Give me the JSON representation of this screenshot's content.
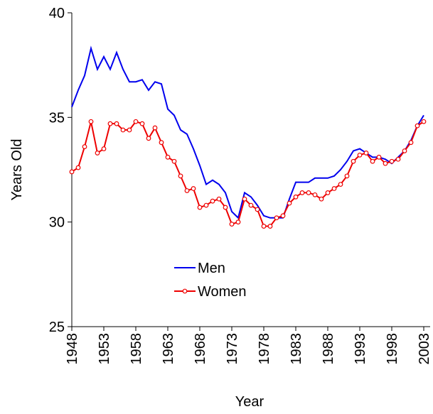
{
  "chart_data": {
    "type": "line",
    "x_label": "Year",
    "y_label": "Years Old",
    "x": [
      1948,
      1949,
      1950,
      1951,
      1952,
      1953,
      1954,
      1955,
      1956,
      1957,
      1958,
      1959,
      1960,
      1961,
      1962,
      1963,
      1964,
      1965,
      1966,
      1967,
      1968,
      1969,
      1970,
      1971,
      1972,
      1973,
      1974,
      1975,
      1976,
      1977,
      1978,
      1979,
      1980,
      1981,
      1982,
      1983,
      1984,
      1985,
      1986,
      1987,
      1988,
      1989,
      1990,
      1991,
      1992,
      1993,
      1994,
      1995,
      1996,
      1997,
      1998,
      1999,
      2000,
      2001,
      2002,
      2003
    ],
    "series": [
      {
        "name": "Men",
        "color": "#0000ee",
        "values": [
          35.5,
          36.3,
          37.0,
          38.3,
          37.3,
          37.9,
          37.3,
          38.1,
          37.3,
          36.7,
          36.7,
          36.8,
          36.3,
          36.7,
          36.6,
          35.4,
          35.1,
          34.4,
          34.2,
          33.5,
          32.7,
          31.8,
          32.0,
          31.8,
          31.4,
          30.5,
          30.2,
          31.4,
          31.2,
          30.8,
          30.3,
          30.2,
          30.2,
          30.2,
          31.1,
          31.9,
          31.9,
          31.9,
          32.1,
          32.1,
          32.1,
          32.2,
          32.5,
          32.9,
          33.4,
          33.5,
          33.3,
          33.1,
          33.1,
          33.0,
          32.8,
          33.1,
          33.4,
          33.9,
          34.6,
          35.1
        ]
      },
      {
        "name": "Women",
        "color": "#ee0000",
        "marker": "circle",
        "values": [
          32.4,
          32.6,
          33.6,
          34.8,
          33.3,
          33.5,
          34.7,
          34.7,
          34.4,
          34.4,
          34.8,
          34.7,
          34.0,
          34.5,
          33.8,
          33.1,
          32.9,
          32.2,
          31.5,
          31.6,
          30.7,
          30.8,
          31.0,
          31.1,
          30.7,
          29.9,
          30.0,
          31.1,
          30.8,
          30.6,
          29.8,
          29.8,
          30.2,
          30.3,
          30.9,
          31.2,
          31.4,
          31.4,
          31.3,
          31.1,
          31.4,
          31.6,
          31.8,
          32.2,
          32.9,
          33.2,
          33.3,
          32.9,
          33.1,
          32.8,
          32.9,
          33.0,
          33.4,
          33.8,
          34.6,
          34.8
        ]
      }
    ],
    "xlim": [
      1948,
      2004
    ],
    "xticks": [
      1948,
      1953,
      1958,
      1963,
      1968,
      1973,
      1978,
      1983,
      1988,
      1993,
      1998,
      2003
    ],
    "ylim": [
      25,
      40
    ],
    "yticks": [
      25,
      30,
      35,
      40
    ],
    "grid": false
  }
}
